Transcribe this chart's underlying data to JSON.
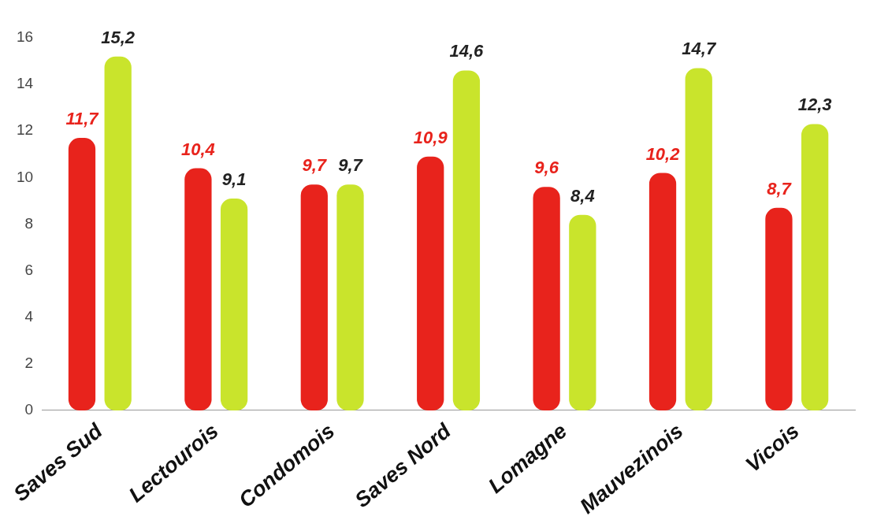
{
  "chart_data": {
    "type": "bar",
    "categories": [
      "Saves Sud",
      "Lectourois",
      "Condomois",
      "Saves Nord",
      "Lomagne",
      "Mauvezinois",
      "Vicois"
    ],
    "series": [
      {
        "color": "#e8231c",
        "values": [
          11.7,
          10.4,
          9.7,
          10.9,
          9.6,
          10.2,
          8.7
        ],
        "value_labels": [
          "11,7",
          "10,4",
          "9,7",
          "10,9",
          "9,6",
          "10,2",
          "8,7"
        ]
      },
      {
        "color": "#c9e42c",
        "values": [
          15.2,
          9.1,
          9.7,
          14.6,
          8.4,
          14.7,
          12.3
        ],
        "value_labels": [
          "15,2",
          "9,1",
          "9,7",
          "14,6",
          "8,4",
          "14,7",
          "12,3"
        ]
      }
    ],
    "ylim": [
      0,
      16
    ],
    "yticks": [
      0,
      2,
      4,
      6,
      8,
      10,
      12,
      14,
      16
    ]
  }
}
